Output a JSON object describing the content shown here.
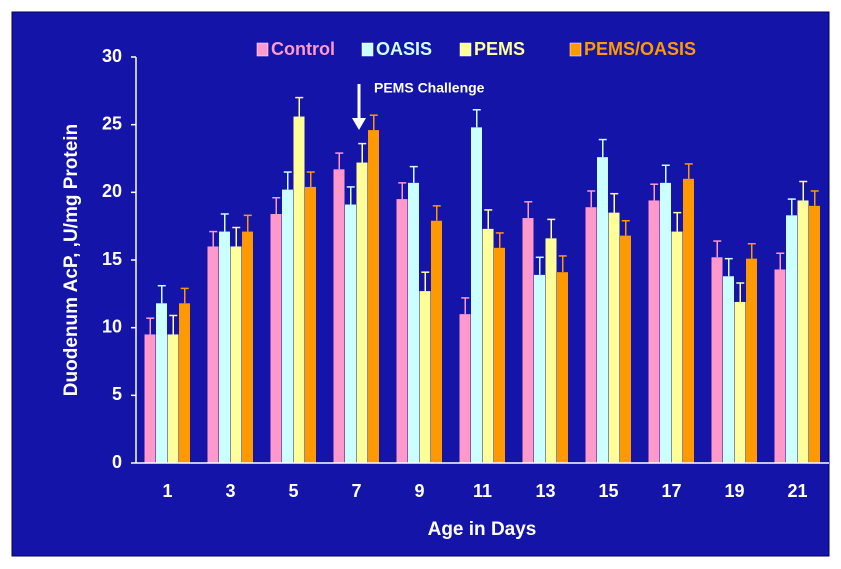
{
  "chart_data": {
    "type": "bar",
    "ylabel": "Duodenum AcP, ,U/mg Protein",
    "xlabel": "Age in Days",
    "annotation": "PEMS Challenge",
    "categories": [
      "1",
      "3",
      "5",
      "7",
      "9",
      "11",
      "13",
      "15",
      "17",
      "19",
      "21"
    ],
    "series": [
      {
        "name": "Control",
        "color": "#ff99cc",
        "values": [
          9.5,
          16.0,
          18.4,
          21.7,
          19.5,
          11.0,
          18.1,
          18.9,
          19.4,
          15.2,
          14.3
        ],
        "errors": [
          1.2,
          1.1,
          1.2,
          1.2,
          1.2,
          1.2,
          1.2,
          1.2,
          1.2,
          1.2,
          1.2
        ]
      },
      {
        "name": "OASIS",
        "color": "#ccffff",
        "values": [
          11.8,
          17.1,
          20.2,
          19.1,
          20.7,
          24.8,
          13.9,
          22.6,
          20.7,
          13.8,
          18.3
        ],
        "errors": [
          1.3,
          1.3,
          1.3,
          1.3,
          1.2,
          1.3,
          1.3,
          1.3,
          1.3,
          1.3,
          1.2
        ]
      },
      {
        "name": "PEMS",
        "color": "#ffff99",
        "values": [
          9.5,
          16.0,
          25.6,
          22.2,
          12.7,
          17.3,
          16.6,
          18.5,
          17.1,
          11.9,
          19.4
        ],
        "errors": [
          1.4,
          1.4,
          1.4,
          1.4,
          1.4,
          1.4,
          1.4,
          1.4,
          1.4,
          1.4,
          1.4
        ]
      },
      {
        "name": "PEMS/OASIS",
        "color": "#ff9900",
        "values": [
          11.8,
          17.1,
          20.4,
          24.6,
          17.9,
          15.9,
          14.1,
          16.8,
          21.0,
          15.1,
          19.0
        ],
        "errors": [
          1.1,
          1.2,
          1.1,
          1.1,
          1.1,
          1.1,
          1.2,
          1.1,
          1.1,
          1.1,
          1.1
        ]
      }
    ],
    "ylim": [
      0,
      30
    ],
    "yticks": [
      0,
      5,
      10,
      15,
      20,
      25,
      30
    ]
  }
}
